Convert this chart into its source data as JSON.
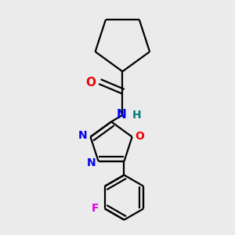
{
  "background_color": "#ebebeb",
  "bond_color": "#000000",
  "N_color": "#0000ee",
  "O_color": "#ee0000",
  "F_color": "#dd00dd",
  "H_color": "#008080",
  "line_width": 1.6,
  "figsize": [
    3.0,
    3.0
  ],
  "dpi": 100,
  "xlim": [
    0.05,
    0.95
  ],
  "ylim": [
    0.03,
    0.97
  ]
}
